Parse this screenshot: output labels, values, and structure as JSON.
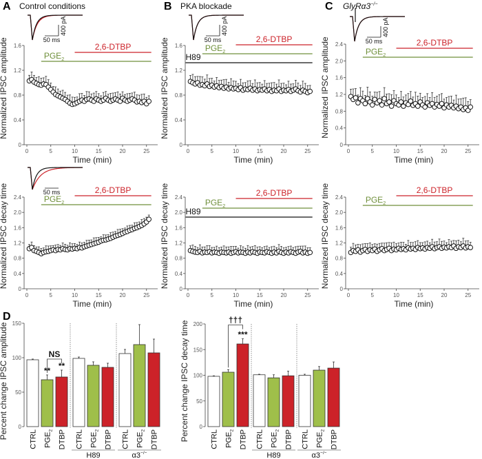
{
  "figure": {
    "panels": [
      {
        "letter": "A",
        "title": "Control conditions"
      },
      {
        "letter": "B",
        "title": "PKA blockade"
      },
      {
        "letter": "C",
        "title": "GlyRα3",
        "title_sup": "−/−"
      },
      {
        "letter": "D",
        "title": ""
      }
    ],
    "scale_bars": {
      "time": "50 ms",
      "current": "400 pA"
    }
  },
  "colors": {
    "pge2": "#9fbf4a",
    "pge2_line": "#6f8f3a",
    "dtbp": "#cc2229",
    "h89": "#111111",
    "ctrl": "#ffffff"
  },
  "chart_data": [
    {
      "id": "A-amplitude",
      "type": "scatter",
      "marker": "open-circle",
      "ylabel": "Normalized IPSC amplitude",
      "xlabel": "Time (min)",
      "ylim": [
        0,
        1.6
      ],
      "yticks": [
        "0",
        "0.4",
        "0.8",
        "1.2",
        "1.6"
      ],
      "xticks": [
        "0",
        "5",
        "10",
        "15",
        "20",
        "25"
      ],
      "sem": 0.08,
      "drugs": [
        {
          "label": "2,6-DTBP",
          "color": "#cc2229",
          "start": 10,
          "end": 26
        },
        {
          "label": "PGE₂",
          "color": "#6f8f3a",
          "start": 3,
          "end": 26
        }
      ],
      "y": [
        1.03,
        1.05,
        1.01,
        0.99,
        0.97,
        0.96,
        0.98,
        0.97,
        0.93,
        0.89,
        0.85,
        0.81,
        0.79,
        0.77,
        0.75,
        0.73,
        0.7,
        0.67,
        0.65,
        0.66,
        0.68,
        0.7,
        0.72,
        0.7,
        0.73,
        0.74,
        0.72,
        0.7,
        0.74,
        0.72,
        0.7,
        0.72,
        0.75,
        0.72,
        0.7,
        0.72,
        0.74,
        0.72,
        0.7,
        0.75,
        0.72,
        0.7,
        0.72,
        0.74,
        0.72,
        0.69,
        0.7,
        0.68,
        0.7,
        0.66,
        0.7
      ]
    },
    {
      "id": "B-amplitude",
      "type": "scatter",
      "marker": "open-circle",
      "ylabel": "Normalized IPSC amplitude",
      "xlabel": "Time (min)",
      "ylim": [
        0,
        1.6
      ],
      "yticks": [
        "0",
        "0.4",
        "0.8",
        "1.2",
        "1.6"
      ],
      "xticks": [
        "0",
        "5",
        "10",
        "15",
        "20",
        "25"
      ],
      "sem": 0.09,
      "drugs": [
        {
          "label": "2,6-DTBP",
          "color": "#cc2229",
          "start": 10,
          "end": 26
        },
        {
          "label": "PGE₂",
          "color": "#6f8f3a",
          "start": 3,
          "end": 26
        },
        {
          "label": "H89",
          "color": "#111111",
          "start": -0.5,
          "end": 26
        }
      ],
      "y": [
        1.02,
        1.0,
        0.98,
        1.0,
        0.96,
        0.97,
        0.95,
        0.98,
        0.94,
        0.96,
        0.93,
        0.95,
        0.92,
        0.94,
        0.91,
        0.93,
        0.9,
        0.92,
        0.9,
        0.91,
        0.89,
        0.92,
        0.88,
        0.9,
        0.89,
        0.91,
        0.88,
        0.9,
        0.87,
        0.89,
        0.88,
        0.9,
        0.87,
        0.89,
        0.86,
        0.88,
        0.87,
        0.9,
        0.86,
        0.88,
        0.87,
        0.89,
        0.86,
        0.88,
        0.9,
        0.87,
        0.85,
        0.88,
        0.86,
        0.84,
        0.86
      ]
    },
    {
      "id": "C-amplitude",
      "type": "scatter",
      "marker": "open-circle",
      "ylabel": "Normalized IPSC amplitude",
      "xlabel": "Time (min)",
      "ylim": [
        0,
        2.4
      ],
      "yticks": [
        "0",
        "0.4",
        "0.8",
        "1.2",
        "1.6",
        "2.0",
        "2.4"
      ],
      "xticks": [
        "0",
        "5",
        "10",
        "15",
        "20",
        "25"
      ],
      "sem": 0.18,
      "drugs": [
        {
          "label": "2,6-DTBP",
          "color": "#cc2229",
          "start": 10,
          "end": 26
        },
        {
          "label": "PGE₂",
          "color": "#6f8f3a",
          "start": 3,
          "end": 26
        }
      ],
      "y": [
        1.15,
        1.08,
        1.12,
        1.0,
        1.1,
        1.05,
        0.98,
        1.1,
        1.02,
        0.95,
        1.08,
        1.0,
        1.05,
        0.95,
        1.1,
        0.98,
        1.02,
        0.92,
        1.05,
        0.98,
        0.95,
        1.02,
        0.92,
        1.0,
        0.96,
        1.04,
        0.94,
        0.98,
        0.92,
        1.02,
        0.95,
        0.9,
        1.0,
        0.94,
        0.98,
        0.9,
        0.96,
        0.92,
        0.98,
        0.88,
        0.95,
        0.9,
        0.94,
        0.88,
        0.92,
        0.86,
        0.9,
        0.84,
        0.88,
        0.82,
        0.9
      ]
    },
    {
      "id": "A-decay",
      "type": "scatter",
      "marker": "open-circle",
      "ylabel": "Normalized IPSC decay time",
      "xlabel": "Time (min)",
      "ylim": [
        0,
        2.4
      ],
      "yticks": [
        "0",
        "0.4",
        "0.8",
        "1.2",
        "1.6",
        "2.0",
        "2.4"
      ],
      "xticks": [
        "0",
        "5",
        "10",
        "15",
        "20",
        "25"
      ],
      "sem": 0.08,
      "drugs": [
        {
          "label": "2,6-DTBP",
          "color": "#cc2229",
          "start": 10,
          "end": 26
        },
        {
          "label": "PGE₂",
          "color": "#6f8f3a",
          "start": 3,
          "end": 26
        }
      ],
      "y": [
        1.05,
        1.08,
        1.0,
        0.98,
        0.95,
        0.92,
        0.95,
        0.97,
        0.98,
        1.0,
        1.02,
        1.0,
        1.03,
        1.02,
        1.05,
        1.03,
        1.02,
        1.05,
        1.04,
        1.06,
        1.05,
        1.08,
        1.07,
        1.1,
        1.12,
        1.14,
        1.16,
        1.18,
        1.2,
        1.22,
        1.25,
        1.27,
        1.28,
        1.3,
        1.32,
        1.35,
        1.38,
        1.4,
        1.42,
        1.45,
        1.48,
        1.5,
        1.53,
        1.55,
        1.58,
        1.6,
        1.63,
        1.66,
        1.7,
        1.75,
        1.82
      ]
    },
    {
      "id": "B-decay",
      "type": "scatter",
      "marker": "open-circle",
      "ylabel": "Normalized IPSC decay time",
      "xlabel": "Time (min)",
      "ylim": [
        0,
        2.4
      ],
      "yticks": [
        "0",
        "0.4",
        "0.8",
        "1.2",
        "1.6",
        "2.0",
        "2.4"
      ],
      "xticks": [
        "0",
        "5",
        "10",
        "15",
        "20",
        "25"
      ],
      "sem": 0.1,
      "drugs": [
        {
          "label": "2,6-DTBP",
          "color": "#cc2229",
          "start": 10,
          "end": 26
        },
        {
          "label": "PGE₂",
          "color": "#6f8f3a",
          "start": 3,
          "end": 26
        },
        {
          "label": "H89",
          "color": "#111111",
          "start": -0.5,
          "end": 26
        }
      ],
      "y": [
        1.0,
        0.98,
        0.96,
        0.95,
        0.98,
        0.94,
        0.96,
        0.95,
        0.97,
        0.94,
        0.96,
        0.95,
        0.93,
        0.96,
        0.95,
        0.94,
        0.96,
        0.93,
        0.95,
        0.97,
        0.94,
        0.96,
        0.95,
        0.93,
        0.96,
        0.94,
        0.97,
        0.95,
        0.93,
        0.96,
        0.95,
        0.94,
        0.97,
        0.95,
        0.93,
        0.96,
        0.94,
        0.98,
        0.95,
        0.93,
        0.96,
        0.94,
        0.97,
        0.95,
        0.93,
        0.96,
        0.98,
        0.94,
        0.96,
        0.93,
        0.95
      ]
    },
    {
      "id": "C-decay",
      "type": "scatter",
      "marker": "open-circle",
      "ylabel": "Normalized IPSC decay time",
      "xlabel": "Time (min)",
      "ylim": [
        0,
        2.4
      ],
      "yticks": [
        "0",
        "0.4",
        "0.8",
        "1.2",
        "1.6",
        "2.0",
        "2.4"
      ],
      "xticks": [
        "0",
        "5",
        "10",
        "15",
        "20",
        "25"
      ],
      "sem": 0.12,
      "drugs": [
        {
          "label": "2,6-DTBP",
          "color": "#cc2229",
          "start": 10,
          "end": 26
        },
        {
          "label": "PGE₂",
          "color": "#6f8f3a",
          "start": 3,
          "end": 26
        }
      ],
      "y": [
        0.95,
        1.0,
        0.98,
        1.02,
        0.96,
        1.0,
        1.03,
        0.98,
        1.02,
        1.0,
        1.04,
        0.98,
        1.02,
        1.05,
        1.0,
        1.03,
        1.06,
        1.0,
        1.04,
        1.02,
        1.06,
        1.03,
        1.05,
        1.02,
        1.07,
        1.04,
        1.06,
        1.03,
        1.08,
        1.05,
        1.07,
        1.04,
        1.08,
        1.06,
        1.1,
        1.05,
        1.08,
        1.1,
        1.06,
        1.09,
        1.07,
        1.1,
        1.08,
        1.12,
        1.06,
        1.1,
        1.08,
        1.12,
        1.07,
        1.1,
        1.08
      ]
    },
    {
      "id": "D-amplitude",
      "type": "bar",
      "ylabel": "Percent change IPSC amplitude",
      "ylim": [
        0,
        150
      ],
      "yticks": [
        "0",
        "50",
        "100",
        "150"
      ],
      "categories": [
        "CTRL",
        "PGE₂",
        "DTBP",
        "CTRL",
        "PGE₂",
        "DTBP",
        "CTRL",
        "PGE₂",
        "DTBP"
      ],
      "groups": [
        {
          "label": ""
        },
        {
          "label": "H89"
        },
        {
          "label": "α3",
          "sup": "−/−"
        }
      ],
      "values": [
        97,
        68,
        72,
        99,
        89,
        86,
        106,
        119,
        107
      ],
      "errors": [
        1,
        7,
        10,
        2,
        5,
        6,
        6,
        29,
        20
      ],
      "annotations": {
        "stars": [
          "",
          "**",
          "**",
          "",
          "",
          "",
          "",
          "",
          ""
        ],
        "bracket": {
          "from": 1,
          "to": 2,
          "label": "NS"
        }
      }
    },
    {
      "id": "D-decay",
      "type": "bar",
      "ylabel": "Percent change IPSC decay time",
      "ylim": [
        0,
        200
      ],
      "yticks": [
        "0",
        "50",
        "100",
        "150",
        "200"
      ],
      "categories": [
        "CTRL",
        "PGE₂",
        "DTBP",
        "CTRL",
        "PGE₂",
        "DTBP",
        "CTRL",
        "PGE₂",
        "DTBP"
      ],
      "groups": [
        {
          "label": ""
        },
        {
          "label": "H89"
        },
        {
          "label": "α3",
          "sup": "−/−"
        }
      ],
      "values": [
        98,
        106,
        161,
        101,
        95,
        99,
        100,
        110,
        114
      ],
      "errors": [
        1,
        5,
        10,
        1,
        6,
        9,
        2,
        7,
        12
      ],
      "annotations": {
        "stars": [
          "",
          "",
          "***",
          "",
          "",
          "",
          "",
          "",
          ""
        ],
        "bracket": {
          "from": 1,
          "to": 2,
          "label": "†††"
        }
      }
    }
  ],
  "time_min": [
    0.5,
    1,
    1.5,
    2,
    2.5,
    3,
    3.5,
    4,
    4.5,
    5,
    5.5,
    6,
    6.5,
    7,
    7.5,
    8,
    8.5,
    9,
    9.5,
    10,
    10.5,
    11,
    11.5,
    12,
    12.5,
    13,
    13.5,
    14,
    14.5,
    15,
    15.5,
    16,
    16.5,
    17,
    17.5,
    18,
    18.5,
    19,
    19.5,
    20,
    20.5,
    21,
    21.5,
    22,
    22.5,
    23,
    23.5,
    24,
    24.5,
    25,
    25.5
  ]
}
